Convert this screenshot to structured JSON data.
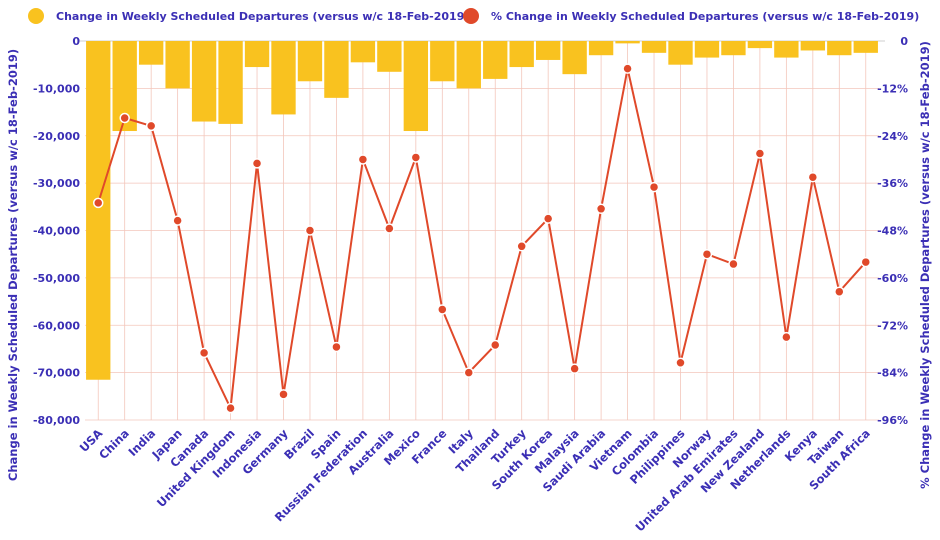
{
  "chart_data": {
    "type": "bar+line",
    "legend": [
      {
        "label": "Change in Weekly Scheduled Departures (versus w/c 18-Feb-2019)",
        "color": "#f9c21f"
      },
      {
        "label": "% Change in Weekly Scheduled Departures (versus w/c 18-Feb-2019)",
        "color": "#e0492a"
      }
    ],
    "ylabel_left": "Change in Weekly Scheduled Departures (versus w/c 18-Feb-2019)",
    "ylabel_right": "% Change in Weekly Scheduled Departures (versus w/c 18-Feb-2019)",
    "ylim_left": [
      -80000,
      0
    ],
    "ylim_right": [
      -96,
      0
    ],
    "yticks_left": [
      {
        "value": 0,
        "label": "0"
      },
      {
        "value": -10000,
        "label": "-10,000"
      },
      {
        "value": -20000,
        "label": "-20,000"
      },
      {
        "value": -30000,
        "label": "-30,000"
      },
      {
        "value": -40000,
        "label": "-40,000"
      },
      {
        "value": -50000,
        "label": "-50,000"
      },
      {
        "value": -60000,
        "label": "-60,000"
      },
      {
        "value": -70000,
        "label": "-70,000"
      },
      {
        "value": -80000,
        "label": "-80,000"
      }
    ],
    "yticks_right": [
      {
        "value": 0,
        "label": "0"
      },
      {
        "value": -12,
        "label": "-12%"
      },
      {
        "value": -24,
        "label": "-24%"
      },
      {
        "value": -36,
        "label": "-36%"
      },
      {
        "value": -48,
        "label": "-48%"
      },
      {
        "value": -60,
        "label": "-60%"
      },
      {
        "value": -72,
        "label": "-72%"
      },
      {
        "value": -84,
        "label": "-84%"
      },
      {
        "value": -96,
        "label": "-96%"
      }
    ],
    "categories": [
      "USA",
      "China",
      "India",
      "Japan",
      "Canada",
      "United Kingdom",
      "Indonesia",
      "Germany",
      "Brazil",
      "Spain",
      "Russian Federation",
      "Australia",
      "Mexico",
      "France",
      "Italy",
      "Thailand",
      "Turkey",
      "South Korea",
      "Malaysia",
      "Saudi Arabia",
      "Vietnam",
      "Colombia",
      "Philippines",
      "Norway",
      "United Arab Emirates",
      "New Zealand",
      "Netherlands",
      "Kenya",
      "Taiwan",
      "South Africa"
    ],
    "series": [
      {
        "name": "Change in Weekly Scheduled Departures (versus w/c 18-Feb-2019)",
        "type": "bar",
        "color": "#f9c21f",
        "values": [
          -71500,
          -19000,
          -5000,
          -10000,
          -17000,
          -17500,
          -5500,
          -15500,
          -8500,
          -12000,
          -4500,
          -6500,
          -19000,
          -8500,
          -10000,
          -8000,
          -5500,
          -4000,
          -7000,
          -3000,
          -500,
          -2500,
          -5000,
          -3500,
          -3000,
          -1500,
          -3500,
          -2000,
          -3000,
          -2500
        ]
      },
      {
        "name": "% Change in Weekly Scheduled Departures (versus w/c 18-Feb-2019)",
        "type": "line",
        "color": "#e0492a",
        "values": [
          -41,
          -19.5,
          -21.5,
          -45.5,
          -79,
          -93,
          -31,
          -89.5,
          -48,
          -77.5,
          -30,
          -47.5,
          -29.5,
          -68,
          -84,
          -77,
          -52,
          -45,
          -83,
          -42.5,
          -7,
          -37,
          -81.5,
          -54,
          -56.5,
          -28.5,
          -75,
          -34.5,
          -63.5,
          -56
        ]
      }
    ]
  }
}
